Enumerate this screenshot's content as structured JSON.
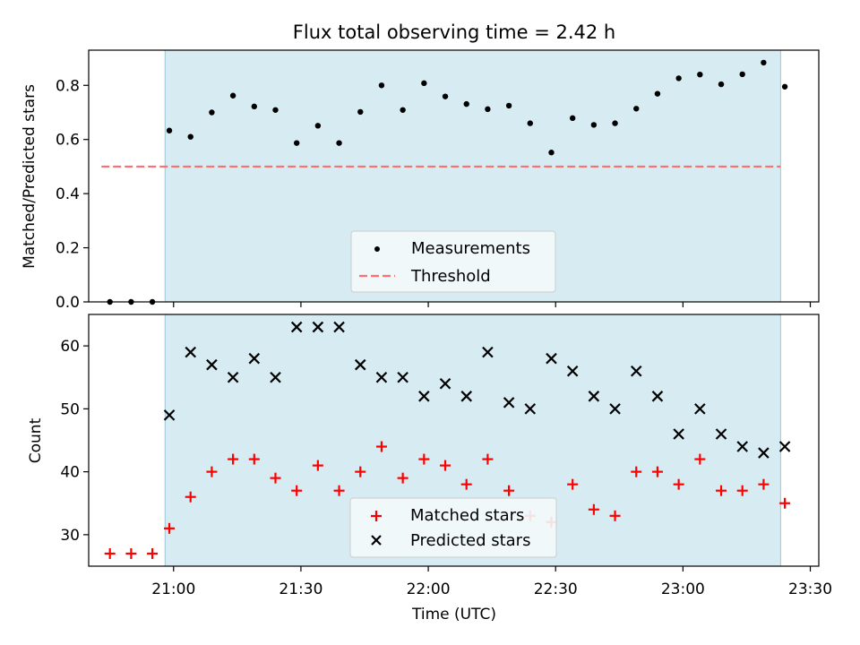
{
  "title": "Flux total observing time = 2.42 h",
  "xlabel": "Time (UTC)",
  "x_ticks": [
    "21:00",
    "21:30",
    "22:00",
    "22:30",
    "23:00",
    "23:30"
  ],
  "chart_data": [
    {
      "type": "scatter",
      "panel": "top",
      "ylabel": "Matched/Predicted stars",
      "xlim": [
        "20:40",
        "23:32"
      ],
      "ylim": [
        0,
        0.93
      ],
      "y_ticks": [
        "0.0",
        "0.2",
        "0.4",
        "0.6",
        "0.8"
      ],
      "shaded_span": {
        "start": "20:58",
        "end": "23:23",
        "color": "#add8e6"
      },
      "legend": {
        "placement": "lower center",
        "entries": [
          "Measurements",
          "Threshold"
        ]
      },
      "threshold": {
        "name": "Threshold",
        "value": 0.5,
        "x_range": [
          "20:43",
          "23:23"
        ],
        "color": "#ff6f6f",
        "style": "dashed"
      },
      "series": [
        {
          "name": "Measurements",
          "color": "#000000",
          "marker": "dot",
          "x": [
            "20:45",
            "20:50",
            "20:55",
            "20:59",
            "21:04",
            "21:09",
            "21:14",
            "21:19",
            "21:24",
            "21:29",
            "21:34",
            "21:39",
            "21:44",
            "21:49",
            "21:54",
            "21:59",
            "22:04",
            "22:09",
            "22:14",
            "22:19",
            "22:24",
            "22:29",
            "22:34",
            "22:39",
            "22:44",
            "22:49",
            "22:54",
            "22:59",
            "23:04",
            "23:09",
            "23:14",
            "23:19",
            "23:24"
          ],
          "y": [
            0.0,
            0.0,
            0.0,
            0.633,
            0.61,
            0.7,
            0.762,
            0.722,
            0.709,
            0.587,
            0.651,
            0.587,
            0.702,
            0.8,
            0.709,
            0.808,
            0.759,
            0.731,
            0.712,
            0.725,
            0.66,
            0.552,
            0.679,
            0.654,
            0.66,
            0.714,
            0.769,
            0.826,
            0.84,
            0.804,
            0.841,
            0.884,
            0.795
          ]
        }
      ]
    },
    {
      "type": "scatter",
      "panel": "bottom",
      "ylabel": "Count",
      "xlim": [
        "20:40",
        "23:32"
      ],
      "ylim": [
        25,
        65
      ],
      "y_ticks": [
        "30",
        "40",
        "50",
        "60"
      ],
      "shaded_span": {
        "start": "20:58",
        "end": "23:23",
        "color": "#add8e6"
      },
      "legend": {
        "placement": "lower center",
        "entries": [
          "Matched stars",
          "Predicted stars"
        ]
      },
      "series": [
        {
          "name": "Matched stars",
          "color": "#ff0000",
          "marker": "plus",
          "x": [
            "20:45",
            "20:50",
            "20:55",
            "20:59",
            "21:04",
            "21:09",
            "21:14",
            "21:19",
            "21:24",
            "21:29",
            "21:34",
            "21:39",
            "21:44",
            "21:49",
            "21:54",
            "21:59",
            "22:04",
            "22:09",
            "22:14",
            "22:19",
            "22:24",
            "22:29",
            "22:34",
            "22:39",
            "22:44",
            "22:49",
            "22:54",
            "22:59",
            "23:04",
            "23:09",
            "23:14",
            "23:19",
            "23:24"
          ],
          "y": [
            27,
            27,
            27,
            31,
            36,
            40,
            42,
            42,
            39,
            37,
            41,
            37,
            40,
            44,
            39,
            42,
            41,
            38,
            42,
            37,
            33,
            32,
            38,
            34,
            33,
            40,
            40,
            38,
            42,
            37,
            37,
            38,
            35
          ]
        },
        {
          "name": "Predicted stars",
          "color": "#000000",
          "marker": "x",
          "x": [
            "20:59",
            "21:04",
            "21:09",
            "21:14",
            "21:19",
            "21:24",
            "21:29",
            "21:34",
            "21:39",
            "21:44",
            "21:49",
            "21:54",
            "21:59",
            "22:04",
            "22:09",
            "22:14",
            "22:19",
            "22:24",
            "22:29",
            "22:34",
            "22:39",
            "22:44",
            "22:49",
            "22:54",
            "22:59",
            "23:04",
            "23:09",
            "23:14",
            "23:19",
            "23:24"
          ],
          "y": [
            49,
            59,
            57,
            55,
            58,
            55,
            63,
            63,
            63,
            57,
            55,
            55,
            52,
            54,
            52,
            59,
            51,
            50,
            58,
            56,
            52,
            50,
            56,
            52,
            46,
            50,
            46,
            44,
            43,
            44
          ]
        }
      ]
    }
  ]
}
